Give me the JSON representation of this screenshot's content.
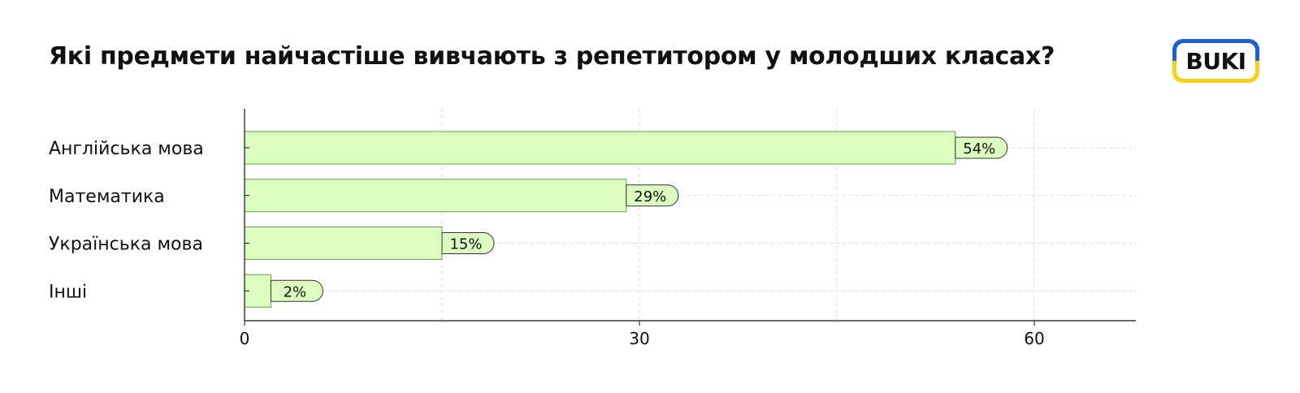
{
  "header": {
    "title": "Які предмети найчастіше вивчають з репетитором у молодших класах?",
    "logo_text": "BUKI"
  },
  "colors": {
    "bar_fill": "#ddfcc0",
    "bar_stroke": "#6a9d4f",
    "grid": "#dddddd",
    "axis": "#111111",
    "logo_blue": "#1f5fd6",
    "logo_yellow": "#f5d21b"
  },
  "chart_data": {
    "type": "bar",
    "orientation": "horizontal",
    "title": "Які предмети найчастіше вивчають з репетитором у молодших класах?",
    "categories": [
      "Англійська мова",
      "Математика",
      "Українська мова",
      "Інші"
    ],
    "values": [
      54,
      29,
      15,
      2
    ],
    "data_labels": [
      "54%",
      "29%",
      "15%",
      "2%"
    ],
    "xlim": [
      0,
      68
    ],
    "xticks": [
      0,
      30,
      60
    ],
    "xtick_labels": [
      "0",
      "30",
      "60"
    ],
    "grid": true,
    "xlabel": "",
    "ylabel": ""
  }
}
